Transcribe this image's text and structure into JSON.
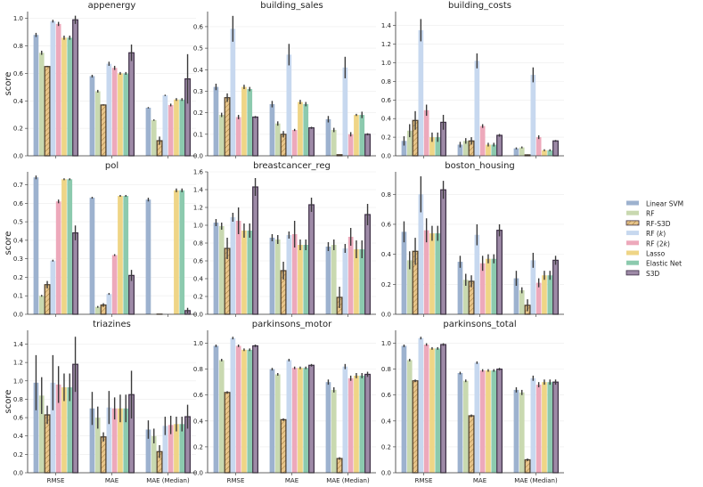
{
  "figure": {
    "ylabel": "score",
    "categories": [
      "RMSE",
      "MAE",
      "MAE (Median)"
    ],
    "legend_position": "right",
    "series": [
      {
        "name": "Linear SVM",
        "color": "#9db2cf",
        "hatch": false
      },
      {
        "name": "RF",
        "color": "#c9d9b0",
        "hatch": false
      },
      {
        "name": "RF-S3D",
        "color": "#e7c48a",
        "hatch": true
      },
      {
        "name": "RF (k)",
        "name_main": "RF (",
        "name_italic": "k",
        "name_end": ")",
        "color": "#c7d8ef",
        "hatch": false
      },
      {
        "name": "RF (2k)",
        "name_main": "RF (2",
        "name_italic": "k",
        "name_end": ")",
        "color": "#eda9bb",
        "hatch": false
      },
      {
        "name": "Lasso",
        "color": "#efd586",
        "hatch": false
      },
      {
        "name": "Elastic Net",
        "color": "#8ccaae",
        "hatch": false
      },
      {
        "name": "S3D",
        "color": "#9e8aa7",
        "hatch": false
      }
    ]
  },
  "chart_data": [
    {
      "type": "bar",
      "title": "appenergy",
      "ylim": [
        0,
        1.05
      ],
      "yticks": [
        0.0,
        0.2,
        0.4,
        0.6,
        0.8,
        1.0
      ],
      "grid": true,
      "values": [
        [
          0.88,
          0.75,
          0.65,
          0.98,
          0.96,
          0.86,
          0.86,
          0.99
        ],
        [
          0.58,
          0.47,
          0.37,
          0.67,
          0.64,
          0.6,
          0.6,
          0.75
        ],
        [
          0.35,
          0.26,
          0.11,
          0.44,
          0.37,
          0.41,
          0.41,
          0.56
        ]
      ],
      "errors": [
        [
          0.015,
          0.015,
          0.005,
          0.01,
          0.015,
          0.015,
          0.015,
          0.03
        ],
        [
          0.01,
          0.01,
          0.005,
          0.015,
          0.015,
          0.01,
          0.01,
          0.06
        ],
        [
          0.005,
          0.005,
          0.03,
          0.005,
          0.01,
          0.01,
          0.01,
          0.18
        ]
      ]
    },
    {
      "type": "bar",
      "title": "building_sales",
      "ylim": [
        0,
        0.67
      ],
      "yticks": [
        0.0,
        0.1,
        0.2,
        0.3,
        0.4,
        0.5,
        0.6
      ],
      "grid": true,
      "values": [
        [
          0.32,
          0.19,
          0.27,
          0.59,
          0.18,
          0.32,
          0.31,
          0.18
        ],
        [
          0.24,
          0.15,
          0.1,
          0.47,
          0.12,
          0.25,
          0.24,
          0.13
        ],
        [
          0.17,
          0.12,
          0.005,
          0.41,
          0.1,
          0.19,
          0.19,
          0.1
        ]
      ],
      "errors": [
        [
          0.015,
          0.01,
          0.02,
          0.06,
          0.01,
          0.01,
          0.01,
          0.005
        ],
        [
          0.015,
          0.01,
          0.015,
          0.05,
          0.005,
          0.01,
          0.01,
          0.005
        ],
        [
          0.015,
          0.01,
          0.002,
          0.05,
          0.01,
          0.005,
          0.015,
          0.005
        ]
      ]
    },
    {
      "type": "bar",
      "title": "building_costs",
      "ylim": [
        0,
        1.55
      ],
      "yticks": [
        0.0,
        0.2,
        0.4,
        0.6,
        0.8,
        1.0,
        1.2,
        1.4
      ],
      "grid": true,
      "values": [
        [
          0.16,
          0.27,
          0.38,
          1.35,
          0.49,
          0.2,
          0.2,
          0.36
        ],
        [
          0.12,
          0.16,
          0.16,
          1.02,
          0.32,
          0.12,
          0.12,
          0.22
        ],
        [
          0.08,
          0.09,
          0.01,
          0.87,
          0.2,
          0.06,
          0.06,
          0.16
        ]
      ],
      "errors": [
        [
          0.05,
          0.07,
          0.1,
          0.12,
          0.06,
          0.05,
          0.05,
          0.08
        ],
        [
          0.03,
          0.03,
          0.04,
          0.08,
          0.02,
          0.02,
          0.02,
          0.015
        ],
        [
          0.01,
          0.01,
          0.005,
          0.08,
          0.02,
          0.01,
          0.01,
          0.01
        ]
      ]
    },
    {
      "type": "bar",
      "title": "pol",
      "ylim": [
        0,
        0.77
      ],
      "yticks": [
        0.0,
        0.1,
        0.2,
        0.3,
        0.4,
        0.5,
        0.6,
        0.7
      ],
      "grid": true,
      "values": [
        [
          0.74,
          0.1,
          0.16,
          0.29,
          0.61,
          0.73,
          0.73,
          0.44
        ],
        [
          0.63,
          0.04,
          0.05,
          0.11,
          0.32,
          0.64,
          0.64,
          0.21
        ],
        [
          0.62,
          0.001,
          0.001,
          0.001,
          0.001,
          0.67,
          0.67,
          0.02
        ]
      ],
      "errors": [
        [
          0.01,
          0.005,
          0.02,
          0.005,
          0.01,
          0.005,
          0.005,
          0.04
        ],
        [
          0.005,
          0.005,
          0.01,
          0.005,
          0.005,
          0.005,
          0.005,
          0.03
        ],
        [
          0.01,
          0.001,
          0.001,
          0.001,
          0.001,
          0.01,
          0.01,
          0.015
        ]
      ]
    },
    {
      "type": "bar",
      "title": "breastcancer_reg",
      "ylim": [
        0,
        1.6
      ],
      "yticks": [
        0.0,
        0.2,
        0.4,
        0.6,
        0.8,
        1.0,
        1.2,
        1.4,
        1.6
      ],
      "grid": true,
      "values": [
        [
          1.03,
          0.99,
          0.74,
          1.09,
          1.05,
          0.94,
          0.94,
          1.43
        ],
        [
          0.86,
          0.84,
          0.49,
          0.89,
          0.9,
          0.78,
          0.78,
          1.23
        ],
        [
          0.76,
          0.78,
          0.19,
          0.74,
          0.87,
          0.73,
          0.73,
          1.12
        ]
      ],
      "errors": [
        [
          0.04,
          0.04,
          0.12,
          0.05,
          0.15,
          0.08,
          0.08,
          0.1
        ],
        [
          0.04,
          0.05,
          0.1,
          0.04,
          0.15,
          0.06,
          0.06,
          0.08
        ],
        [
          0.05,
          0.06,
          0.12,
          0.05,
          0.1,
          0.1,
          0.1,
          0.12
        ]
      ]
    },
    {
      "type": "bar",
      "title": "boston_housing",
      "ylim": [
        0,
        0.95
      ],
      "yticks": [
        0.0,
        0.2,
        0.4,
        0.6,
        0.8
      ],
      "grid": true,
      "values": [
        [
          0.55,
          0.36,
          0.42,
          0.8,
          0.56,
          0.54,
          0.54,
          0.83
        ],
        [
          0.35,
          0.23,
          0.22,
          0.53,
          0.34,
          0.37,
          0.37,
          0.56
        ],
        [
          0.24,
          0.16,
          0.06,
          0.36,
          0.21,
          0.26,
          0.26,
          0.36
        ]
      ],
      "errors": [
        [
          0.07,
          0.06,
          0.09,
          0.12,
          0.08,
          0.05,
          0.05,
          0.06
        ],
        [
          0.04,
          0.04,
          0.04,
          0.07,
          0.05,
          0.03,
          0.03,
          0.04
        ],
        [
          0.05,
          0.02,
          0.04,
          0.05,
          0.03,
          0.03,
          0.03,
          0.03
        ]
      ]
    },
    {
      "type": "bar",
      "title": "triazines",
      "ylim": [
        0,
        1.55
      ],
      "yticks": [
        0.0,
        0.2,
        0.4,
        0.6,
        0.8,
        1.0,
        1.2,
        1.4
      ],
      "grid": true,
      "values": [
        [
          0.98,
          0.84,
          0.63,
          0.98,
          0.96,
          0.93,
          0.93,
          1.18
        ],
        [
          0.7,
          0.6,
          0.39,
          0.71,
          0.7,
          0.7,
          0.7,
          0.85
        ],
        [
          0.47,
          0.4,
          0.23,
          0.51,
          0.52,
          0.53,
          0.53,
          0.61
        ]
      ],
      "errors": [
        [
          0.3,
          0.2,
          0.1,
          0.3,
          0.2,
          0.15,
          0.15,
          0.3
        ],
        [
          0.18,
          0.12,
          0.05,
          0.18,
          0.12,
          0.15,
          0.15,
          0.26
        ],
        [
          0.1,
          0.08,
          0.07,
          0.1,
          0.1,
          0.08,
          0.08,
          0.13
        ]
      ]
    },
    {
      "type": "bar",
      "title": "parkinsons_motor",
      "ylim": [
        0,
        1.1
      ],
      "yticks": [
        0.0,
        0.2,
        0.4,
        0.6,
        0.8,
        1.0
      ],
      "grid": true,
      "values": [
        [
          0.98,
          0.87,
          0.62,
          1.04,
          0.98,
          0.95,
          0.95,
          0.98
        ],
        [
          0.8,
          0.76,
          0.41,
          0.87,
          0.81,
          0.81,
          0.81,
          0.83
        ],
        [
          0.7,
          0.64,
          0.11,
          0.82,
          0.73,
          0.75,
          0.75,
          0.76
        ]
      ],
      "errors": [
        [
          0.01,
          0.01,
          0.01,
          0.01,
          0.01,
          0.01,
          0.01,
          0.01
        ],
        [
          0.01,
          0.01,
          0.01,
          0.01,
          0.01,
          0.01,
          0.01,
          0.01
        ],
        [
          0.02,
          0.02,
          0.01,
          0.02,
          0.02,
          0.02,
          0.02,
          0.02
        ]
      ]
    },
    {
      "type": "bar",
      "title": "parkinsons_total",
      "ylim": [
        0,
        1.1
      ],
      "yticks": [
        0.0,
        0.2,
        0.4,
        0.6,
        0.8,
        1.0
      ],
      "grid": true,
      "values": [
        [
          0.98,
          0.87,
          0.71,
          1.04,
          0.99,
          0.96,
          0.96,
          0.99
        ],
        [
          0.77,
          0.71,
          0.44,
          0.85,
          0.79,
          0.79,
          0.79,
          0.8
        ],
        [
          0.64,
          0.62,
          0.1,
          0.73,
          0.68,
          0.7,
          0.7,
          0.7
        ]
      ],
      "errors": [
        [
          0.01,
          0.01,
          0.01,
          0.01,
          0.01,
          0.01,
          0.01,
          0.01
        ],
        [
          0.01,
          0.01,
          0.01,
          0.01,
          0.01,
          0.01,
          0.01,
          0.01
        ],
        [
          0.02,
          0.02,
          0.01,
          0.02,
          0.02,
          0.02,
          0.02,
          0.02
        ]
      ]
    }
  ]
}
